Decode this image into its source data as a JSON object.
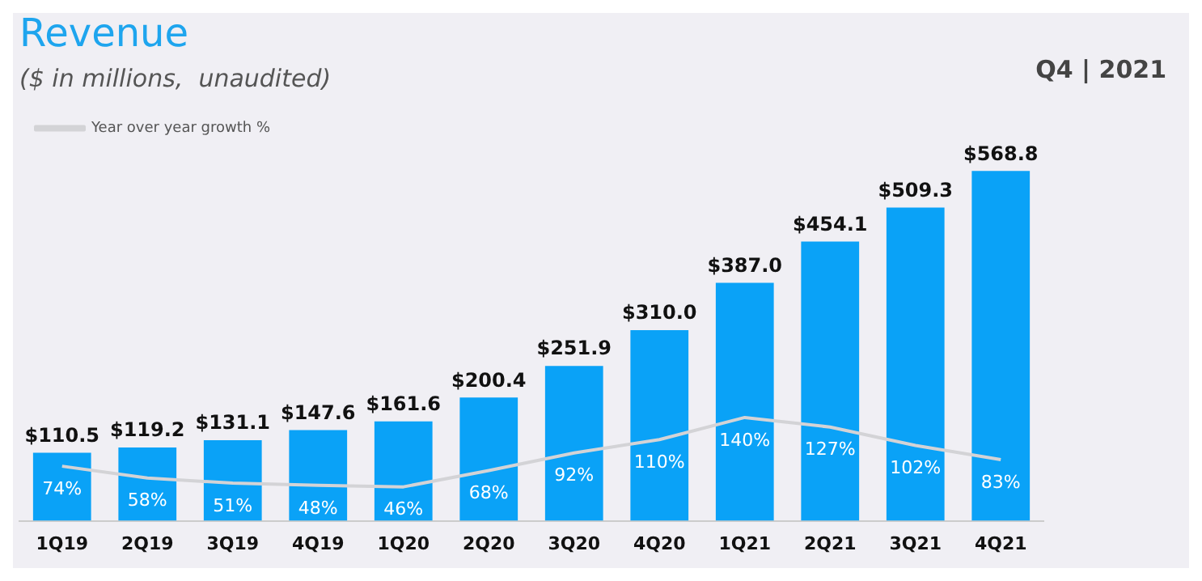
{
  "chart_data": {
    "type": "bar",
    "title": "Revenue",
    "subtitle": "($ in millions,  unaudited)",
    "annotations": [
      "Q4 | 2021"
    ],
    "categories": [
      "1Q19",
      "2Q19",
      "3Q19",
      "4Q19",
      "1Q20",
      "2Q20",
      "3Q20",
      "4Q20",
      "1Q21",
      "2Q21",
      "3Q21",
      "4Q21"
    ],
    "series": [
      {
        "type": "bar",
        "color": "#0aa2f7",
        "values": [
          110.5,
          119.2,
          131.1,
          147.6,
          161.6,
          200.4,
          251.9,
          310.0,
          387.0,
          454.1,
          509.3,
          568.8
        ],
        "value_labels": [
          "$110.5",
          "$119.2",
          "$131.1",
          "$147.6",
          "$161.6",
          "$200.4",
          "$251.9",
          "$310.0",
          "$387.0",
          "$454.1",
          "$509.3",
          "$568.8"
        ]
      },
      {
        "type": "line",
        "axis": "y2",
        "name": "Year over year growth %",
        "color": "#d3d3d6",
        "values": [
          74,
          58,
          51,
          48,
          46,
          68,
          92,
          110,
          140,
          127,
          102,
          83
        ],
        "value_labels": [
          "74%",
          "58%",
          "51%",
          "48%",
          "46%",
          "68%",
          "92%",
          "110%",
          "140%",
          "127%",
          "102%",
          "83%"
        ]
      }
    ],
    "legend": "top left",
    "grid": false,
    "marker": "none"
  }
}
